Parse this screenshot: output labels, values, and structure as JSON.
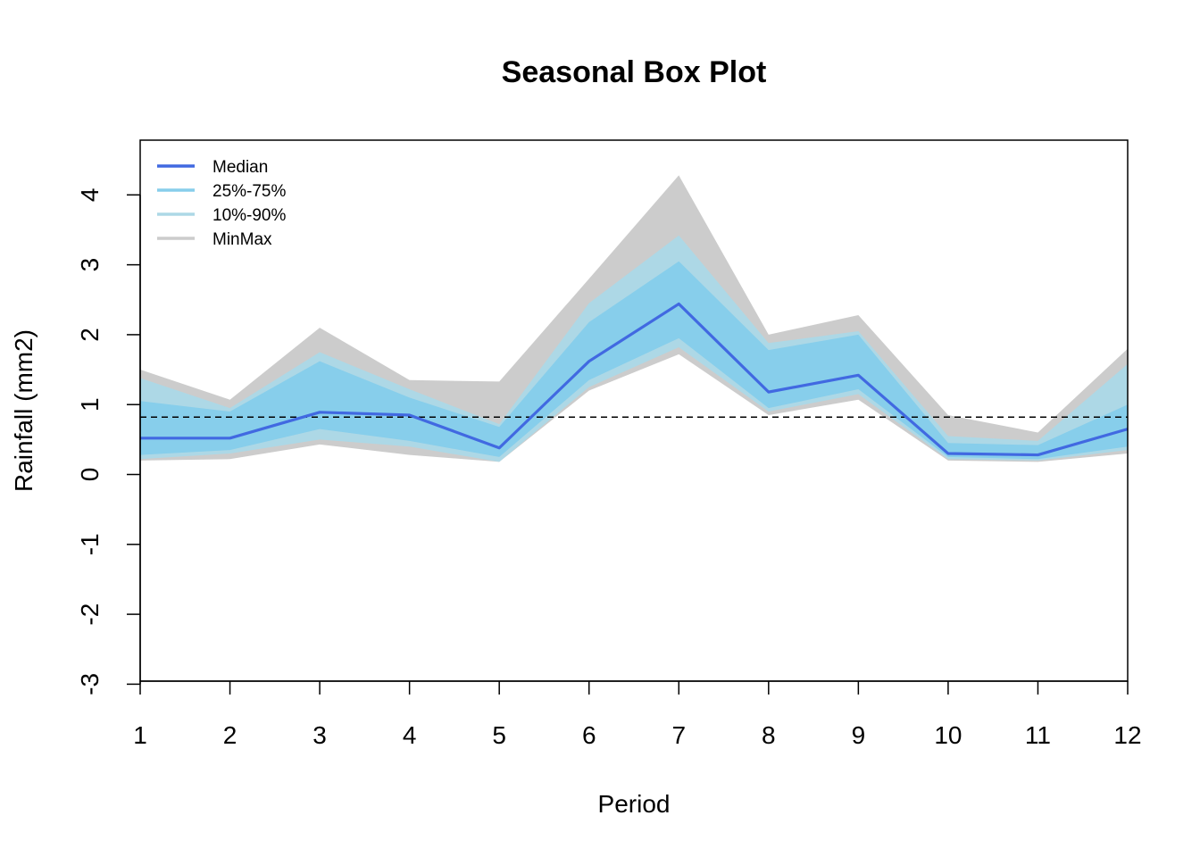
{
  "chart_data": {
    "type": "area",
    "title": "Seasonal Box Plot",
    "xlabel": "Period",
    "ylabel": "Rainfall (mm2)",
    "x": [
      1,
      2,
      3,
      4,
      5,
      6,
      7,
      8,
      9,
      10,
      11,
      12
    ],
    "xlim": [
      1,
      12
    ],
    "ylim": [
      -3,
      4.7
    ],
    "yticks": [
      -3,
      -2,
      -1,
      0,
      1,
      2,
      3,
      4
    ],
    "reference_line": {
      "y": 0.82,
      "style": "dashed"
    },
    "grid": false,
    "legend_position": "top-left",
    "bands": [
      {
        "name": "MinMax",
        "color": "#cccccc",
        "lower": [
          0.2,
          0.22,
          0.43,
          0.28,
          0.18,
          1.2,
          1.72,
          0.85,
          1.07,
          0.2,
          0.18,
          0.3
        ],
        "upper": [
          1.5,
          1.07,
          2.1,
          1.35,
          1.33,
          2.8,
          4.28,
          2.0,
          2.28,
          0.85,
          0.6,
          1.8
        ]
      },
      {
        "name": "10%-90%",
        "color": "#add8e6",
        "lower": [
          0.22,
          0.3,
          0.5,
          0.4,
          0.18,
          1.25,
          1.82,
          0.9,
          1.15,
          0.22,
          0.2,
          0.35
        ],
        "upper": [
          1.38,
          0.95,
          1.75,
          1.22,
          0.72,
          2.45,
          3.42,
          1.88,
          2.05,
          0.55,
          0.48,
          1.58
        ]
      },
      {
        "name": "25%-75%",
        "color": "#87ceeb",
        "lower": [
          0.28,
          0.35,
          0.65,
          0.48,
          0.25,
          1.35,
          1.95,
          0.95,
          1.22,
          0.25,
          0.22,
          0.4
        ],
        "upper": [
          1.05,
          0.9,
          1.62,
          1.1,
          0.68,
          2.18,
          3.05,
          1.78,
          2.0,
          0.45,
          0.42,
          1.0
        ]
      }
    ],
    "series": [
      {
        "name": "Median",
        "color": "#4169e1",
        "values": [
          0.52,
          0.52,
          0.89,
          0.85,
          0.38,
          1.62,
          2.44,
          1.18,
          1.42,
          0.3,
          0.28,
          0.65
        ]
      }
    ],
    "legend": [
      {
        "label": "Median",
        "color": "#4169e1"
      },
      {
        "label": "25%-75%",
        "color": "#87ceeb"
      },
      {
        "label": "10%-90%",
        "color": "#add8e6"
      },
      {
        "label": "MinMax",
        "color": "#cccccc"
      }
    ]
  }
}
